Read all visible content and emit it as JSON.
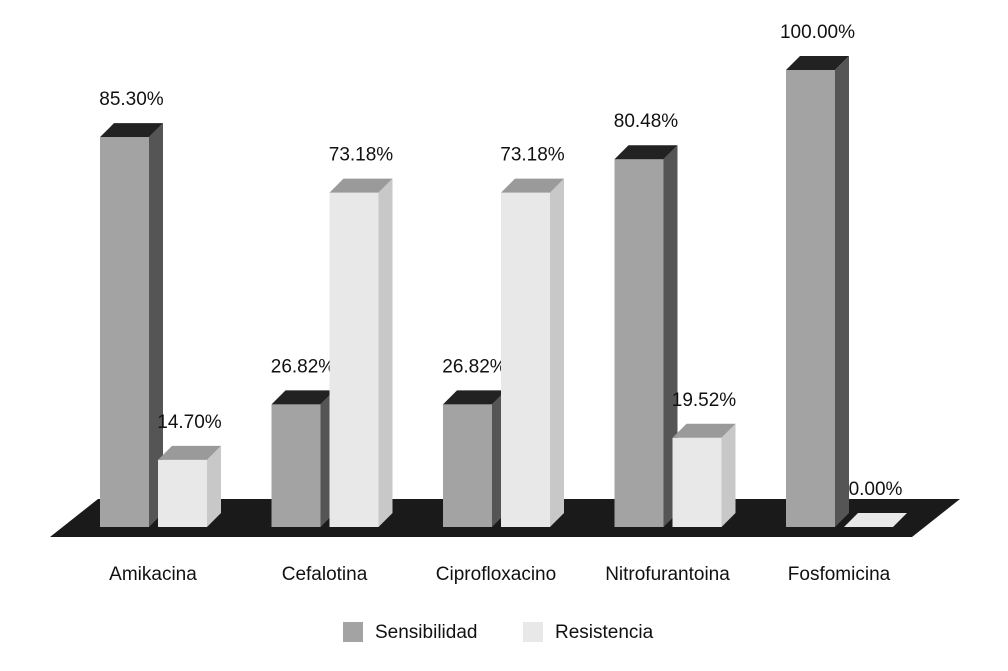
{
  "chart_data": {
    "type": "bar3d",
    "categories": [
      "Amikacina",
      "Cefalotina",
      "Ciprofloxacino",
      "Nitrofurantoina",
      "Fosfomicina"
    ],
    "series": [
      {
        "name": "Sensibilidad",
        "color": "#a3a3a3",
        "values": [
          85.3,
          26.82,
          26.82,
          80.48,
          100
        ],
        "value_labels": [
          "85.30%",
          "26.82%",
          "26.82%",
          "80.48%",
          "100.00%"
        ]
      },
      {
        "name": "Resistencia",
        "color": "#e8e8e8",
        "values": [
          14.7,
          73.18,
          73.18,
          19.52,
          0
        ],
        "value_labels": [
          "14.70%",
          "73.18%",
          "73.18%",
          "19.52%",
          "0.00%"
        ]
      }
    ]
  }
}
